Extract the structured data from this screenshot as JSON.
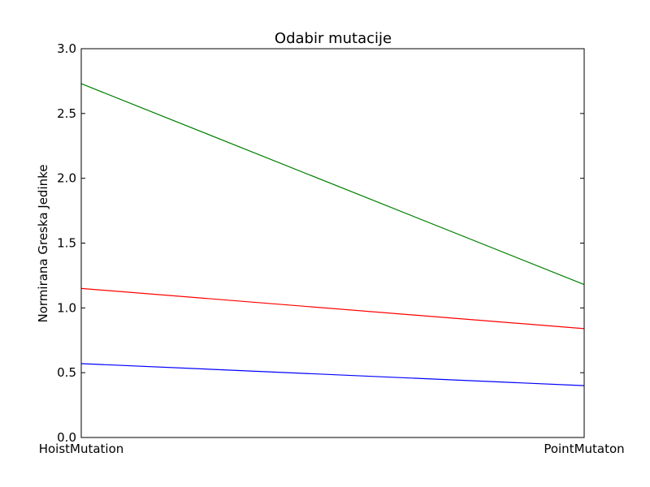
{
  "chart_data": {
    "type": "line",
    "title": "Odabir mutacije",
    "xlabel": "",
    "ylabel": "Normirana Greska Jedinke",
    "categories": [
      "HoistMutation",
      "PointMutaton"
    ],
    "ylim": [
      0,
      3.0
    ],
    "yticks": [
      "0.0",
      "0.5",
      "1.0",
      "1.5",
      "2.0",
      "2.5",
      "3.0"
    ],
    "grid": false,
    "legend": "none",
    "series": [
      {
        "values": [
          2.73,
          1.18
        ],
        "color": "#008000"
      },
      {
        "values": [
          1.15,
          0.84
        ],
        "color": "#ff0000"
      },
      {
        "values": [
          0.57,
          0.4
        ],
        "color": "#0000ff"
      }
    ]
  }
}
